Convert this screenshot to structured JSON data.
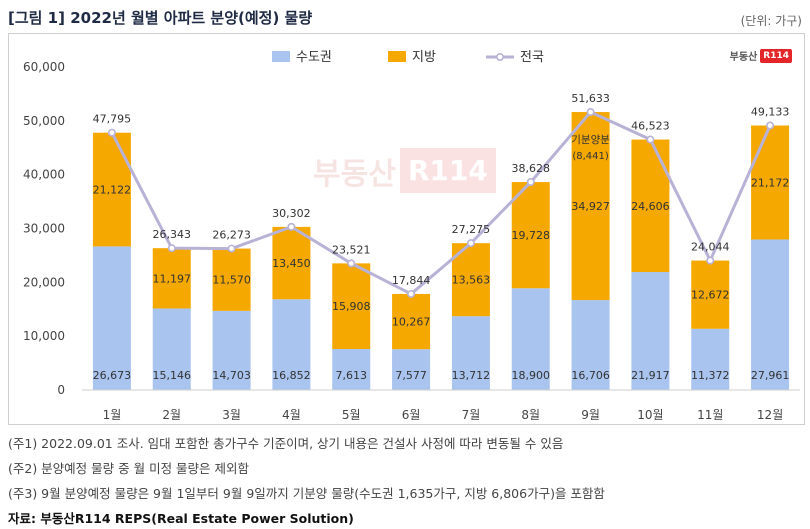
{
  "header": {
    "title": "[그림 1] 2022년 월별 아파트 분양(예정) 물량",
    "unit": "(단위: 가구)"
  },
  "brand": {
    "text": "부동산",
    "badge": "R114"
  },
  "notes": [
    "(주1) 2022.09.01 조사. 임대 포함한 총가구수 기준이며, 상기 내용은 건설사 사정에 따라 변동될 수 있음",
    "(주2) 분양예정 물량 중 월 미정 물량은 제외함",
    "(주3) 9월 분양예정 물량은 9월 1일부터 9월 9일까지 기분양 물량(수도권 1,635가구, 지방 6,806가구)을 포함함"
  ],
  "source": "자료: 부동산R114 REPS(Real Estate Power Solution)",
  "colors": {
    "capital": "#a9c4ee",
    "region": "#f5a800",
    "total": "#b7b2d6"
  },
  "chart_data": {
    "type": "bar",
    "stacked": true,
    "categories": [
      "1월",
      "2월",
      "3월",
      "4월",
      "5월",
      "6월",
      "7월",
      "8월",
      "9월",
      "10월",
      "11월",
      "12월"
    ],
    "series": [
      {
        "name": "수도권",
        "values": [
          26673,
          15146,
          14703,
          16852,
          7613,
          7577,
          13712,
          18900,
          16706,
          21917,
          11372,
          27961
        ]
      },
      {
        "name": "지방",
        "values": [
          21122,
          11197,
          11570,
          13450,
          15908,
          10267,
          13563,
          19728,
          34927,
          24606,
          12672,
          21172
        ]
      },
      {
        "name": "전국",
        "type": "line",
        "values": [
          47795,
          26343,
          26273,
          30302,
          23521,
          17844,
          27275,
          38628,
          51633,
          46523,
          24044,
          49133
        ]
      }
    ],
    "ylim": [
      0,
      60000
    ],
    "yticks": [
      0,
      10000,
      20000,
      30000,
      40000,
      50000,
      60000
    ],
    "legend": "top-center",
    "annotation": {
      "category": "9월",
      "label": "기분양분",
      "value": "(8,441)"
    }
  }
}
